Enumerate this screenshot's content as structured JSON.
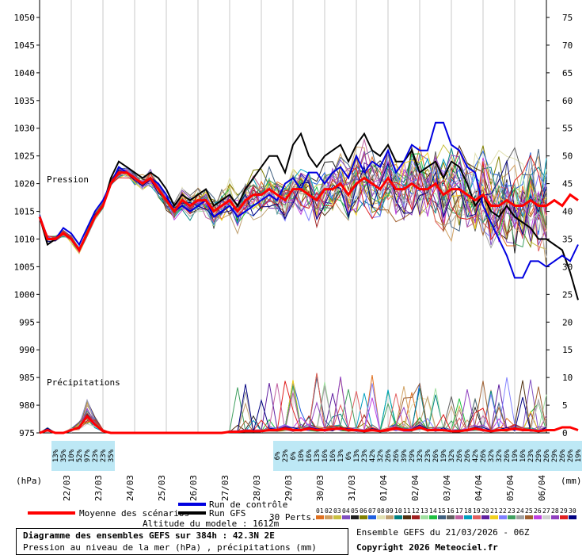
{
  "chart_data": {
    "type": "line",
    "title": "Diagramme des ensembles GEFS sur 384h : 42.3N 2E",
    "subtitle": "Pression au niveau de la mer (hPa) , précipitations (mm)",
    "left_axis": {
      "label": "(hPa)",
      "ticks": [
        975,
        980,
        985,
        990,
        995,
        1000,
        1005,
        1010,
        1015,
        1020,
        1025,
        1030,
        1035,
        1040,
        1045,
        1050
      ],
      "range": [
        975,
        1050
      ]
    },
    "right_axis": {
      "label": "(mm)",
      "ticks": [
        0,
        5,
        10,
        15,
        20,
        25,
        30,
        35,
        40,
        45,
        50,
        55,
        60,
        65,
        70,
        75
      ],
      "range": [
        0,
        75
      ]
    },
    "x_axis": {
      "ticks": [
        "22/03",
        "23/03",
        "24/03",
        "25/03",
        "26/03",
        "27/03",
        "28/03",
        "29/03",
        "30/03",
        "31/03",
        "01/04",
        "02/04",
        "03/04",
        "04/04",
        "05/04",
        "06/04"
      ],
      "range_hours": [
        0,
        384
      ],
      "step_hours": 6
    },
    "annotations": {
      "pression": "Pression",
      "precip": "Précipitations"
    },
    "prob_rows": [
      {
        "start_step": 2,
        "values": [
          "13%",
          "35%",
          "10%",
          "52%",
          "97%",
          "23%",
          "23%",
          "35%"
        ]
      },
      {
        "start_step": 30,
        "values": [
          "6%",
          "23%",
          "6%",
          "10%",
          "16%",
          "13%",
          "16%",
          "16%",
          "13%",
          "6%",
          "13%",
          "23%",
          "42%",
          "32%",
          "26%",
          "26%",
          "39%",
          "29%",
          "32%",
          "23%",
          "26%",
          "19%",
          "32%",
          "26%",
          "26%",
          "42%",
          "26%",
          "32%",
          "32%",
          "26%",
          "19%",
          "16%",
          "23%",
          "29%",
          "26%",
          "29%",
          "26%",
          "26%",
          "19%"
        ]
      }
    ],
    "pressure_control": [
      1014,
      1010,
      1010,
      1012,
      1011,
      1009,
      1012,
      1015,
      1017,
      1020,
      1023,
      1022,
      1021,
      1020,
      1021,
      1020,
      1018,
      1015,
      1016,
      1015,
      1016,
      1017,
      1014,
      1015,
      1016,
      1014,
      1015,
      1016,
      1017,
      1018,
      1017,
      1020,
      1021,
      1019,
      1022,
      1022,
      1020,
      1022,
      1023,
      1021,
      1025,
      1022,
      1024,
      1023,
      1026,
      1022,
      1024,
      1027,
      1026,
      1026,
      1031,
      1031,
      1027,
      1026,
      1023,
      1022,
      1016,
      1013,
      1010,
      1007,
      1003,
      1003,
      1006,
      1006,
      1005,
      1006,
      1007,
      1006,
      1009
    ],
    "pressure_gfs": [
      1014,
      1009,
      1010,
      1011,
      1010,
      1008,
      1011,
      1014,
      1016,
      1021,
      1024,
      1023,
      1022,
      1021,
      1022,
      1021,
      1019,
      1016,
      1018,
      1017,
      1018,
      1019,
      1016,
      1017,
      1018,
      1016,
      1019,
      1021,
      1023,
      1025,
      1025,
      1022,
      1027,
      1029,
      1025,
      1023,
      1025,
      1026,
      1027,
      1024,
      1027,
      1029,
      1026,
      1025,
      1027,
      1024,
      1024,
      1026,
      1022,
      1023,
      1024,
      1021,
      1024,
      1023,
      1020,
      1016,
      1018,
      1015,
      1014,
      1016,
      1014,
      1013,
      1012,
      1010,
      1010,
      1009,
      1008,
      1004,
      999
    ],
    "pressure_mean": [
      1014,
      1010,
      1010,
      1011,
      1010,
      1008,
      1011,
      1014,
      1016,
      1020,
      1022,
      1022,
      1021,
      1020,
      1021,
      1019,
      1017,
      1015,
      1017,
      1016,
      1017,
      1017,
      1015,
      1016,
      1017,
      1015,
      1017,
      1018,
      1018,
      1019,
      1018,
      1017,
      1019,
      1019,
      1018,
      1017,
      1019,
      1019,
      1020,
      1018,
      1020,
      1021,
      1020,
      1019,
      1021,
      1019,
      1019,
      1020,
      1019,
      1019,
      1020,
      1018,
      1019,
      1019,
      1018,
      1017,
      1018,
      1016,
      1016,
      1017,
      1016,
      1016,
      1017,
      1016,
      1016,
      1017,
      1016,
      1018,
      1017
    ],
    "precip_mean": [
      0,
      0.5,
      0,
      0,
      0.5,
      1,
      3,
      1.5,
      0.3,
      0,
      0,
      0,
      0,
      0,
      0,
      0,
      0,
      0,
      0,
      0,
      0,
      0,
      0,
      0,
      0.2,
      0.2,
      0.3,
      0.3,
      0.3,
      0.5,
      0.5,
      0.8,
      0.5,
      0.5,
      0.8,
      0.5,
      0.5,
      0.7,
      0.8,
      0.5,
      0.5,
      0.3,
      0.5,
      0.3,
      0.5,
      0.8,
      0.5,
      0.5,
      1,
      0.5,
      0.5,
      0.5,
      0.3,
      0.3,
      0.5,
      0.8,
      0.5,
      0.3,
      0.5,
      0.5,
      0.8,
      0.5,
      0.5,
      0.3,
      0.5,
      0.5,
      1,
      1,
      0.5
    ],
    "legend": {
      "mean": "Moyenne des scénarios",
      "control": "Run de contrôle",
      "gfs": "Run GFS",
      "perts_label": "30 Perts.",
      "perts": [
        {
          "n": "01",
          "c": "#e07020"
        },
        {
          "n": "02",
          "c": "#d0a060"
        },
        {
          "n": "03",
          "c": "#c9c040"
        },
        {
          "n": "04",
          "c": "#8050c0"
        },
        {
          "n": "05",
          "c": "#202020"
        },
        {
          "n": "06",
          "c": "#808000"
        },
        {
          "n": "07",
          "c": "#2060e0"
        },
        {
          "n": "08",
          "c": "#e0e0b0"
        },
        {
          "n": "09",
          "c": "#c0a070"
        },
        {
          "n": "10",
          "c": "#008080"
        },
        {
          "n": "11",
          "c": "#503010"
        },
        {
          "n": "12",
          "c": "#a02020"
        },
        {
          "n": "13",
          "c": "#a0e0a0"
        },
        {
          "n": "14",
          "c": "#20c040"
        },
        {
          "n": "15",
          "c": "#406080"
        },
        {
          "n": "16",
          "c": "#606060"
        },
        {
          "n": "17",
          "c": "#c060a0"
        },
        {
          "n": "18",
          "c": "#00a0c0"
        },
        {
          "n": "19",
          "c": "#e06060"
        },
        {
          "n": "20",
          "c": "#6020a0"
        },
        {
          "n": "21",
          "c": "#f0d020"
        },
        {
          "n": "22",
          "c": "#8080ff"
        },
        {
          "n": "23",
          "c": "#40a060"
        },
        {
          "n": "24",
          "c": "#a0a0a0"
        },
        {
          "n": "25",
          "c": "#a06030"
        },
        {
          "n": "26",
          "c": "#c040e0"
        },
        {
          "n": "27",
          "c": "#d0d0d0"
        },
        {
          "n": "28",
          "c": "#9040c0"
        },
        {
          "n": "29",
          "c": "#e02020"
        },
        {
          "n": "30",
          "c": "#000080"
        }
      ]
    }
  },
  "footer": {
    "altitude": "Altitude du modele : 1612m",
    "ensemble": "Ensemble GEFS du 21/03/2026 - 06Z",
    "copyright": "Copyright 2026 Meteociel.fr"
  },
  "colors": {
    "control": "#0000e0",
    "gfs": "#000000",
    "mean": "#ff0000",
    "prob": "#bde8f5"
  }
}
